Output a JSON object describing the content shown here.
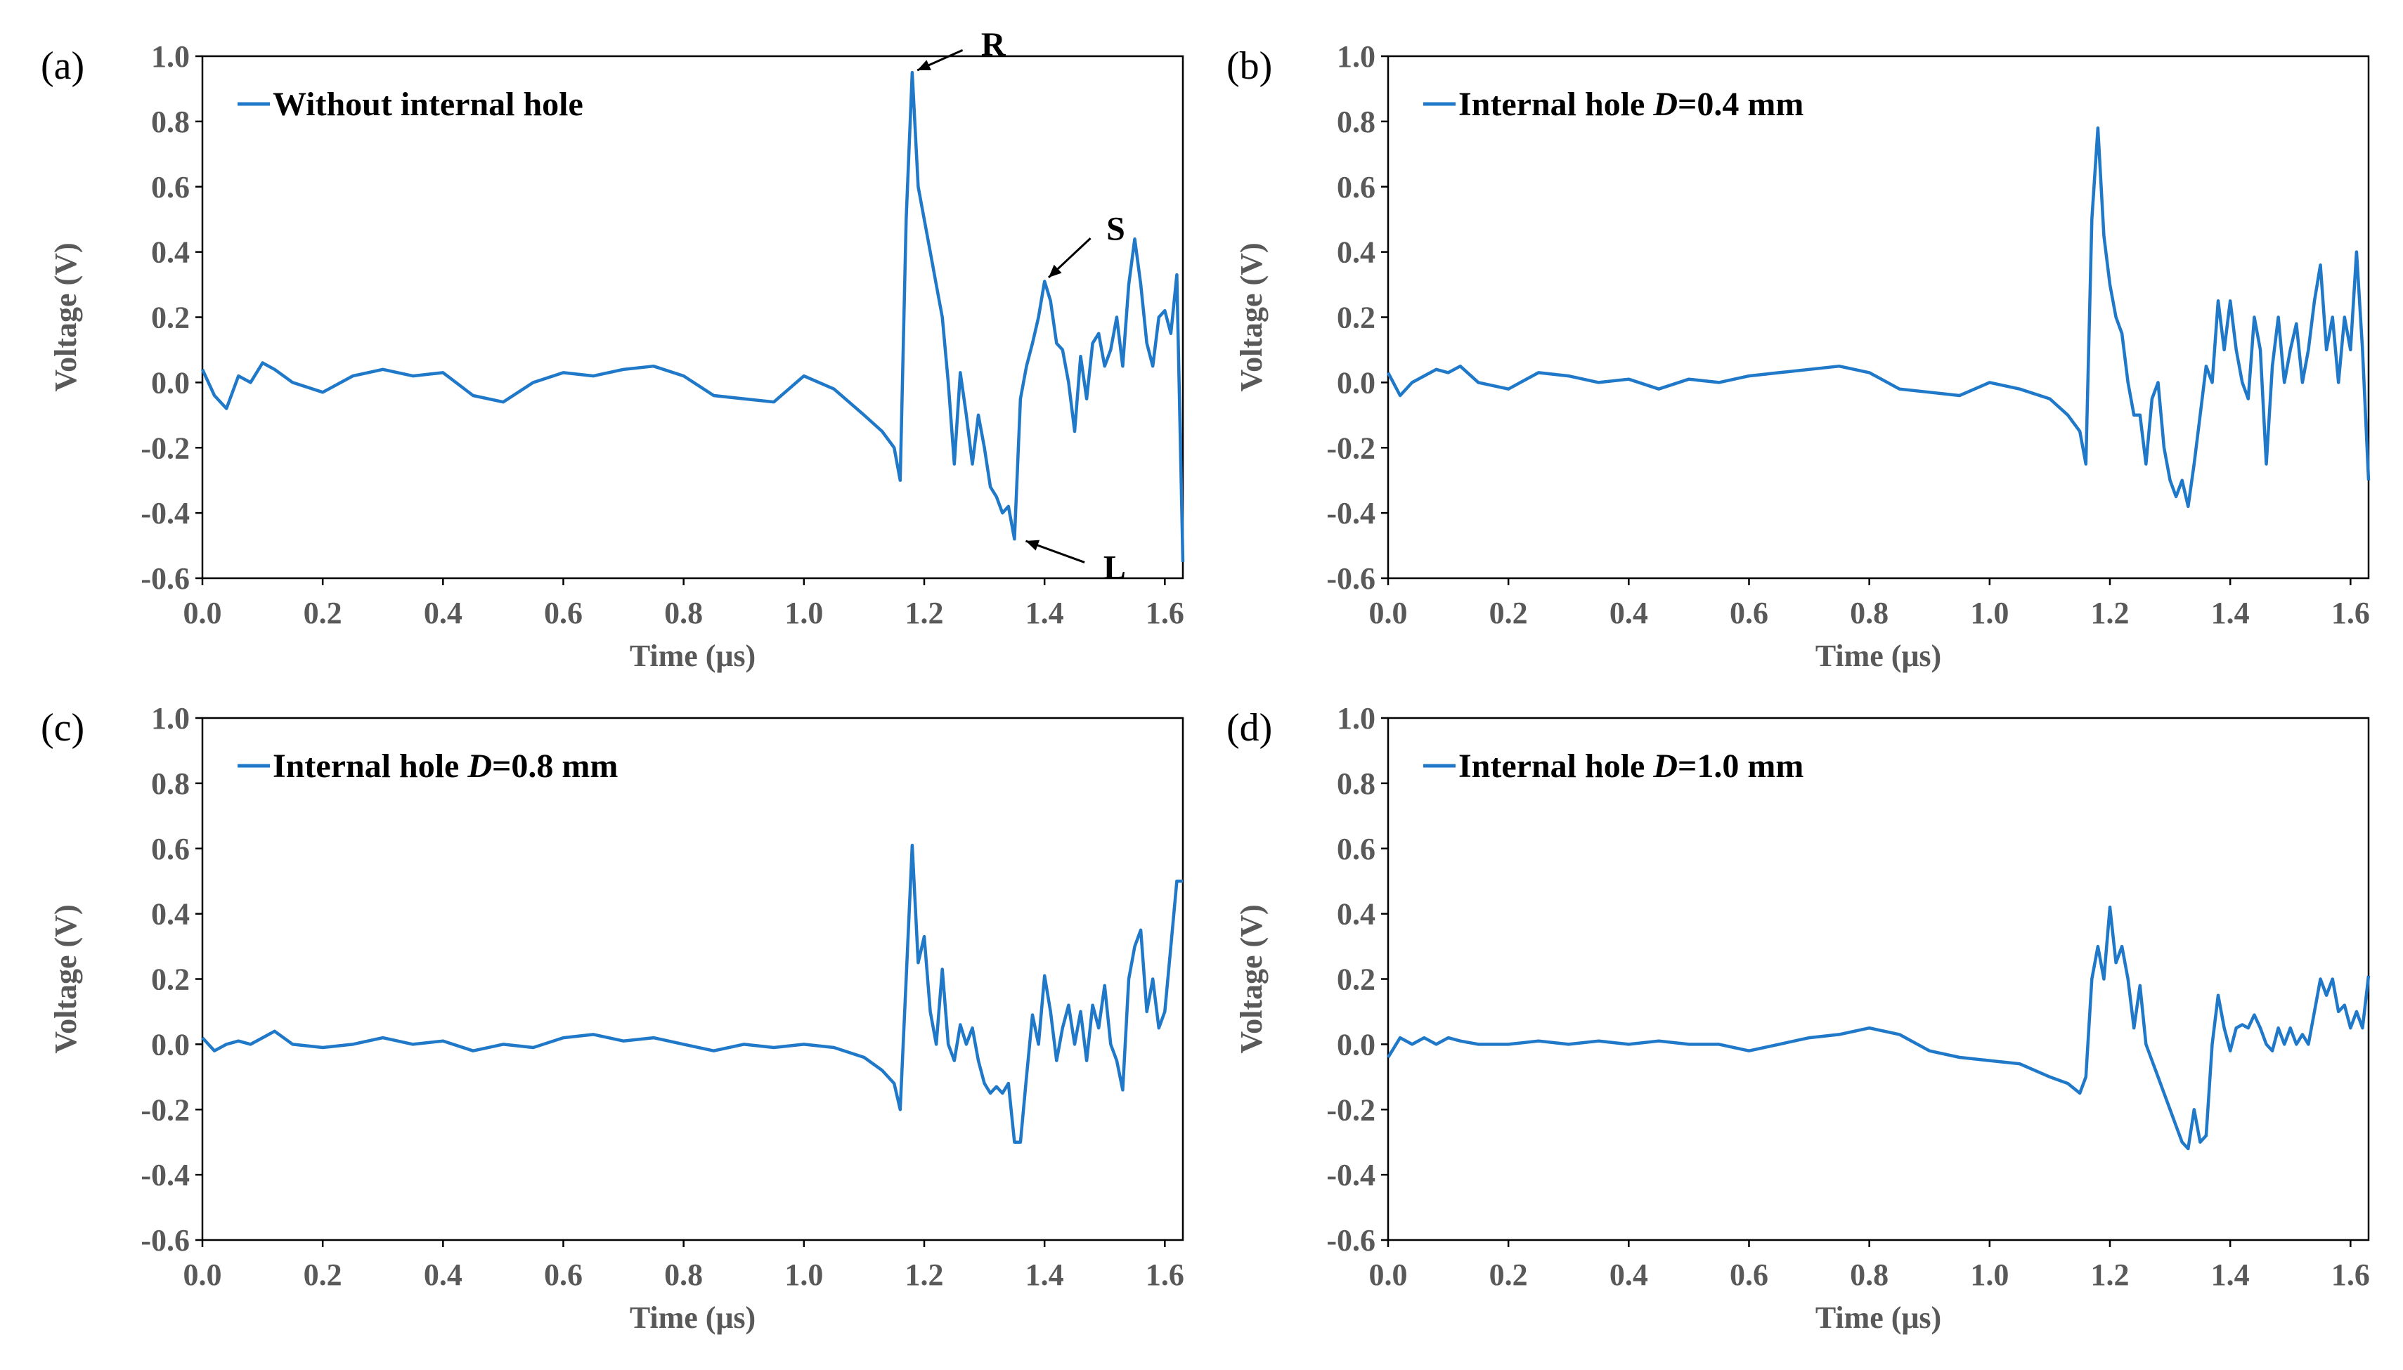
{
  "colors": {
    "series": "#1F78C8"
  },
  "chart_data": [
    {
      "panel": "(a)",
      "type": "line",
      "legend": "Without internal hole",
      "xlabel": "Time (μs)",
      "ylabel": "Voltage (V)",
      "xlim": [
        0,
        1.63
      ],
      "ylim": [
        -0.6,
        1.0
      ],
      "xticks": [
        "0.0",
        "0.2",
        "0.4",
        "0.6",
        "0.8",
        "1.0",
        "1.2",
        "1.4",
        "1.6"
      ],
      "yticks": [
        "1.0",
        "0.8",
        "0.6",
        "0.4",
        "0.2",
        "0.0",
        "-0.2",
        "-0.4",
        "-0.6"
      ],
      "x": [
        0,
        0.02,
        0.04,
        0.06,
        0.08,
        0.1,
        0.12,
        0.15,
        0.2,
        0.25,
        0.3,
        0.35,
        0.4,
        0.45,
        0.5,
        0.55,
        0.6,
        0.65,
        0.7,
        0.75,
        0.8,
        0.85,
        0.9,
        0.95,
        1.0,
        1.05,
        1.1,
        1.13,
        1.15,
        1.16,
        1.17,
        1.18,
        1.19,
        1.2,
        1.21,
        1.22,
        1.23,
        1.24,
        1.25,
        1.26,
        1.27,
        1.28,
        1.29,
        1.3,
        1.31,
        1.32,
        1.33,
        1.34,
        1.35,
        1.36,
        1.37,
        1.38,
        1.39,
        1.4,
        1.41,
        1.42,
        1.43,
        1.44,
        1.45,
        1.46,
        1.47,
        1.48,
        1.49,
        1.5,
        1.51,
        1.52,
        1.53,
        1.54,
        1.55,
        1.56,
        1.57,
        1.58,
        1.59,
        1.6,
        1.61,
        1.62,
        1.63
      ],
      "y": [
        0.04,
        -0.04,
        -0.08,
        0.02,
        0.0,
        0.06,
        0.04,
        0.0,
        -0.03,
        0.02,
        0.04,
        0.02,
        0.03,
        -0.04,
        -0.06,
        0.0,
        0.03,
        0.02,
        0.04,
        0.05,
        0.02,
        -0.04,
        -0.05,
        -0.06,
        0.02,
        -0.02,
        -0.1,
        -0.15,
        -0.2,
        -0.3,
        0.5,
        0.95,
        0.6,
        0.5,
        0.4,
        0.3,
        0.2,
        0.0,
        -0.25,
        0.03,
        -0.1,
        -0.25,
        -0.1,
        -0.2,
        -0.32,
        -0.35,
        -0.4,
        -0.38,
        -0.48,
        -0.05,
        0.05,
        0.12,
        0.2,
        0.31,
        0.25,
        0.12,
        0.1,
        0.0,
        -0.15,
        0.08,
        -0.05,
        0.12,
        0.15,
        0.05,
        0.1,
        0.2,
        0.05,
        0.3,
        0.44,
        0.3,
        0.12,
        0.05,
        0.2,
        0.22,
        0.15,
        0.33,
        -0.55
      ],
      "annotations": [
        {
          "text": "R",
          "x": 1.18,
          "y": 0.95
        },
        {
          "text": "S",
          "x": 1.4,
          "y": 0.31
        },
        {
          "text": "L",
          "x": 1.36,
          "y": -0.48
        }
      ]
    },
    {
      "panel": "(b)",
      "type": "line",
      "legend": "Internal hole ",
      "legend_italic": "D",
      "legend_suffix": "=0.4 mm",
      "xlabel": "Time (μs)",
      "ylabel": "Voltage (V)",
      "xlim": [
        0,
        1.63
      ],
      "ylim": [
        -0.6,
        1.0
      ],
      "xticks": [
        "0.0",
        "0.2",
        "0.4",
        "0.6",
        "0.8",
        "1.0",
        "1.2",
        "1.4",
        "1.6"
      ],
      "yticks": [
        "1.0",
        "0.8",
        "0.6",
        "0.4",
        "0.2",
        "0.0",
        "-0.2",
        "-0.4",
        "-0.6"
      ],
      "x": [
        0,
        0.02,
        0.04,
        0.06,
        0.08,
        0.1,
        0.12,
        0.15,
        0.2,
        0.25,
        0.3,
        0.35,
        0.4,
        0.45,
        0.5,
        0.55,
        0.6,
        0.65,
        0.7,
        0.75,
        0.8,
        0.85,
        0.9,
        0.95,
        1.0,
        1.05,
        1.1,
        1.13,
        1.15,
        1.16,
        1.17,
        1.18,
        1.19,
        1.2,
        1.21,
        1.22,
        1.23,
        1.24,
        1.25,
        1.26,
        1.27,
        1.28,
        1.29,
        1.3,
        1.31,
        1.32,
        1.33,
        1.34,
        1.35,
        1.36,
        1.37,
        1.38,
        1.39,
        1.4,
        1.41,
        1.42,
        1.43,
        1.44,
        1.45,
        1.46,
        1.47,
        1.48,
        1.49,
        1.5,
        1.51,
        1.52,
        1.53,
        1.54,
        1.55,
        1.56,
        1.57,
        1.58,
        1.59,
        1.6,
        1.61,
        1.62,
        1.63
      ],
      "y": [
        0.03,
        -0.04,
        0.0,
        0.02,
        0.04,
        0.03,
        0.05,
        0.0,
        -0.02,
        0.03,
        0.02,
        0.0,
        0.01,
        -0.02,
        0.01,
        0.0,
        0.02,
        0.03,
        0.04,
        0.05,
        0.03,
        -0.02,
        -0.03,
        -0.04,
        0.0,
        -0.02,
        -0.05,
        -0.1,
        -0.15,
        -0.25,
        0.5,
        0.78,
        0.45,
        0.3,
        0.2,
        0.15,
        0.0,
        -0.1,
        -0.1,
        -0.25,
        -0.05,
        0.0,
        -0.2,
        -0.3,
        -0.35,
        -0.3,
        -0.38,
        -0.25,
        -0.1,
        0.05,
        0.0,
        0.25,
        0.1,
        0.25,
        0.1,
        0.0,
        -0.05,
        0.2,
        0.1,
        -0.25,
        0.05,
        0.2,
        0.0,
        0.1,
        0.18,
        0.0,
        0.1,
        0.25,
        0.36,
        0.1,
        0.2,
        0.0,
        0.2,
        0.1,
        0.4,
        0.1,
        -0.3
      ]
    },
    {
      "panel": "(c)",
      "type": "line",
      "legend": "Internal hole ",
      "legend_italic": "D",
      "legend_suffix": "=0.8 mm",
      "xlabel": "Time (μs)",
      "ylabel": "Voltage (V)",
      "xlim": [
        0,
        1.63
      ],
      "ylim": [
        -0.6,
        1.0
      ],
      "xticks": [
        "0.0",
        "0.2",
        "0.4",
        "0.6",
        "0.8",
        "1.0",
        "1.2",
        "1.4",
        "1.6"
      ],
      "yticks": [
        "1.0",
        "0.8",
        "0.6",
        "0.4",
        "0.2",
        "0.0",
        "-0.2",
        "-0.4",
        "-0.6"
      ],
      "x": [
        0,
        0.02,
        0.04,
        0.06,
        0.08,
        0.1,
        0.12,
        0.15,
        0.2,
        0.25,
        0.3,
        0.35,
        0.4,
        0.45,
        0.5,
        0.55,
        0.6,
        0.65,
        0.7,
        0.75,
        0.8,
        0.85,
        0.9,
        0.95,
        1.0,
        1.05,
        1.1,
        1.13,
        1.15,
        1.16,
        1.17,
        1.18,
        1.19,
        1.2,
        1.21,
        1.22,
        1.23,
        1.24,
        1.25,
        1.26,
        1.27,
        1.28,
        1.29,
        1.3,
        1.31,
        1.32,
        1.33,
        1.34,
        1.35,
        1.36,
        1.37,
        1.38,
        1.39,
        1.4,
        1.41,
        1.42,
        1.43,
        1.44,
        1.45,
        1.46,
        1.47,
        1.48,
        1.49,
        1.5,
        1.51,
        1.52,
        1.53,
        1.54,
        1.55,
        1.56,
        1.57,
        1.58,
        1.59,
        1.6,
        1.61,
        1.62,
        1.63
      ],
      "y": [
        0.02,
        -0.02,
        0.0,
        0.01,
        0.0,
        0.02,
        0.04,
        0.0,
        -0.01,
        0.0,
        0.02,
        0.0,
        0.01,
        -0.02,
        0.0,
        -0.01,
        0.02,
        0.03,
        0.01,
        0.02,
        0.0,
        -0.02,
        0.0,
        -0.01,
        0.0,
        -0.01,
        -0.04,
        -0.08,
        -0.12,
        -0.2,
        0.2,
        0.61,
        0.25,
        0.33,
        0.1,
        0.0,
        0.23,
        0.0,
        -0.05,
        0.06,
        0.0,
        0.05,
        -0.05,
        -0.12,
        -0.15,
        -0.13,
        -0.15,
        -0.12,
        -0.3,
        -0.3,
        -0.1,
        0.09,
        0.0,
        0.21,
        0.1,
        -0.05,
        0.05,
        0.12,
        0.0,
        0.1,
        -0.05,
        0.12,
        0.05,
        0.18,
        0.0,
        -0.05,
        -0.14,
        0.2,
        0.3,
        0.35,
        0.1,
        0.2,
        0.05,
        0.1,
        0.3,
        0.5,
        0.5
      ]
    },
    {
      "panel": "(d)",
      "type": "line",
      "legend": "Internal hole ",
      "legend_italic": "D",
      "legend_suffix": "=1.0 mm",
      "xlabel": "Time (μs)",
      "ylabel": "Voltage (V)",
      "xlim": [
        0,
        1.63
      ],
      "ylim": [
        -0.6,
        1.0
      ],
      "xticks": [
        "0.0",
        "0.2",
        "0.4",
        "0.6",
        "0.8",
        "1.0",
        "1.2",
        "1.4",
        "1.6"
      ],
      "yticks": [
        "1.0",
        "0.8",
        "0.6",
        "0.4",
        "0.2",
        "0.0",
        "-0.2",
        "-0.4",
        "-0.6"
      ],
      "x": [
        0,
        0.02,
        0.04,
        0.06,
        0.08,
        0.1,
        0.12,
        0.15,
        0.2,
        0.25,
        0.3,
        0.35,
        0.4,
        0.45,
        0.5,
        0.55,
        0.6,
        0.65,
        0.7,
        0.75,
        0.8,
        0.85,
        0.9,
        0.95,
        1.0,
        1.05,
        1.1,
        1.13,
        1.15,
        1.16,
        1.17,
        1.18,
        1.19,
        1.2,
        1.21,
        1.22,
        1.23,
        1.24,
        1.25,
        1.26,
        1.27,
        1.28,
        1.29,
        1.3,
        1.31,
        1.32,
        1.33,
        1.34,
        1.35,
        1.36,
        1.37,
        1.38,
        1.39,
        1.4,
        1.41,
        1.42,
        1.43,
        1.44,
        1.45,
        1.46,
        1.47,
        1.48,
        1.49,
        1.5,
        1.51,
        1.52,
        1.53,
        1.54,
        1.55,
        1.56,
        1.57,
        1.58,
        1.59,
        1.6,
        1.61,
        1.62,
        1.63
      ],
      "y": [
        -0.04,
        0.02,
        0.0,
        0.02,
        0.0,
        0.02,
        0.01,
        0.0,
        0.0,
        0.01,
        0.0,
        0.01,
        0.0,
        0.01,
        0.0,
        0.0,
        -0.02,
        0.0,
        0.02,
        0.03,
        0.05,
        0.03,
        -0.02,
        -0.04,
        -0.05,
        -0.06,
        -0.1,
        -0.12,
        -0.15,
        -0.1,
        0.2,
        0.3,
        0.2,
        0.42,
        0.25,
        0.3,
        0.2,
        0.05,
        0.18,
        0.0,
        -0.05,
        -0.1,
        -0.15,
        -0.2,
        -0.25,
        -0.3,
        -0.32,
        -0.2,
        -0.3,
        -0.28,
        0.0,
        0.15,
        0.05,
        -0.02,
        0.05,
        0.06,
        0.05,
        0.09,
        0.05,
        0.0,
        -0.02,
        0.05,
        0.0,
        0.05,
        0.0,
        0.03,
        0.0,
        0.1,
        0.2,
        0.15,
        0.2,
        0.1,
        0.12,
        0.05,
        0.1,
        0.05,
        0.21
      ]
    }
  ]
}
